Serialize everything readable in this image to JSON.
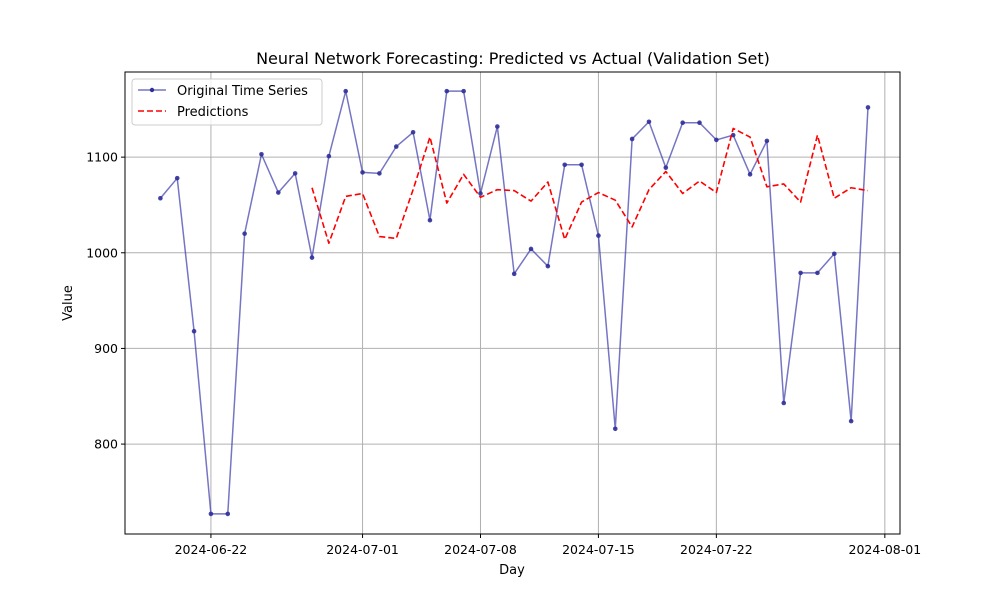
{
  "chart_data": {
    "type": "line",
    "title": "Neural Network Forecasting: Predicted vs Actual (Validation Set)",
    "xlabel": "Day",
    "ylabel": "Value",
    "start_date": "2024-06-19",
    "xlim_days": [
      -2.1,
      43.9
    ],
    "ylim": [
      706,
      1189
    ],
    "yticks": [
      800,
      900,
      1000,
      1100
    ],
    "xticks": [
      {
        "day": 3,
        "label": "2024-06-22"
      },
      {
        "day": 12,
        "label": "2024-07-01"
      },
      {
        "day": 19,
        "label": "2024-07-08"
      },
      {
        "day": 26,
        "label": "2024-07-15"
      },
      {
        "day": 33,
        "label": "2024-07-22"
      },
      {
        "day": 43,
        "label": "2024-08-01"
      }
    ],
    "grid": true,
    "legend_position": "top-left",
    "series": [
      {
        "name": "Original Time Series",
        "style": "solid-with-dots",
        "color": "#3b3bab",
        "start_day": 0,
        "values": [
          1057,
          1078,
          918,
          727,
          727,
          1020,
          1103,
          1063,
          1083,
          995,
          1101,
          1169,
          1084,
          1083,
          1111,
          1126,
          1034,
          1169,
          1169,
          1062,
          1132,
          978,
          1004,
          986,
          1092,
          1092,
          1018,
          816,
          1119,
          1137,
          1089,
          1136,
          1136,
          1118,
          1123,
          1082,
          1117,
          843,
          979,
          979,
          999,
          824,
          1152
        ]
      },
      {
        "name": "Predictions",
        "style": "dashed",
        "color": "#ff0000",
        "start_day": 9,
        "values": [
          1068,
          1010,
          1059,
          1062,
          1017,
          1015,
          1066,
          1121,
          1052,
          1082,
          1058,
          1066,
          1065,
          1054,
          1074,
          1014,
          1053,
          1063,
          1055,
          1027,
          1066,
          1085,
          1062,
          1075,
          1063,
          1130,
          1121,
          1069,
          1072,
          1053,
          1123,
          1057,
          1068,
          1065
        ]
      }
    ]
  }
}
